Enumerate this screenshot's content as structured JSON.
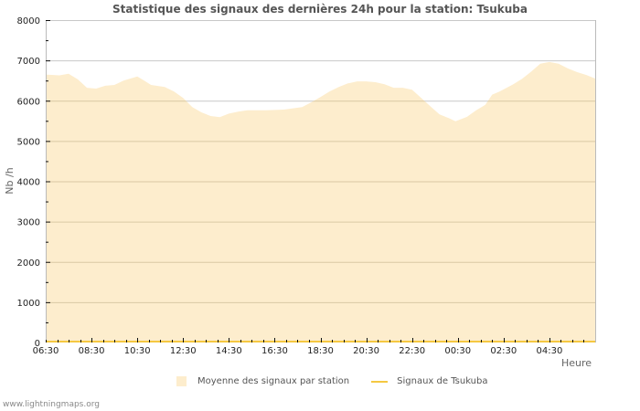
{
  "title": "Statistique des signaux des dernières 24h pour la station: Tsukuba",
  "footer": "www.lightningmaps.org",
  "colors": {
    "area_fill": "#fdedcd",
    "line": "#f5c842",
    "gridline_major": "#c8c8c8",
    "gridline_in_area": "#d9c8a4",
    "axis": "#bbbbbb",
    "text": "#222222",
    "title": "#555555"
  },
  "legend": {
    "items": [
      {
        "label": "Moyenne des signaux par station",
        "type": "area",
        "color": "#fdedcd"
      },
      {
        "label": "Signaux de Tsukuba",
        "type": "line",
        "color": "#f5c842"
      }
    ]
  },
  "chart_data": {
    "type": "area",
    "title": "Statistique des signaux des dernières 24h pour la station: Tsukuba",
    "xlabel": "Heure",
    "ylabel": "Nb /h",
    "ylim": [
      0,
      8000
    ],
    "yticks": [
      0,
      1000,
      2000,
      3000,
      4000,
      5000,
      6000,
      7000,
      8000
    ],
    "xticks": [
      "06:30",
      "08:30",
      "10:30",
      "12:30",
      "14:30",
      "16:30",
      "18:30",
      "20:30",
      "22:30",
      "00:30",
      "02:30",
      "04:30"
    ],
    "grid": true,
    "legend_position": "bottom",
    "series": [
      {
        "name": "Moyenne des signaux par station",
        "type": "area",
        "x_hours_from_start": [
          0,
          0.6,
          1.0,
          1.4,
          1.8,
          2.2,
          2.6,
          3.0,
          3.4,
          4.0,
          4.3,
          4.6,
          5.2,
          5.6,
          6.0,
          6.4,
          6.8,
          7.2,
          7.6,
          8.0,
          8.4,
          8.8,
          9.6,
          10.4,
          11.2,
          11.6,
          12.0,
          12.4,
          12.8,
          13.2,
          13.6,
          14.0,
          14.4,
          14.8,
          15.2,
          15.6,
          16.0,
          16.4,
          16.8,
          17.2,
          17.6,
          17.9,
          18.4,
          18.8,
          19.2,
          19.5,
          19.8,
          20.4,
          20.8,
          21.2,
          21.6,
          22.0,
          22.4,
          22.8,
          23.2,
          23.6,
          24.0
        ],
        "values": [
          6650,
          6630,
          6670,
          6530,
          6320,
          6300,
          6370,
          6390,
          6500,
          6600,
          6500,
          6390,
          6340,
          6230,
          6070,
          5840,
          5710,
          5620,
          5590,
          5680,
          5730,
          5760,
          5760,
          5780,
          5840,
          5960,
          6090,
          6230,
          6340,
          6430,
          6480,
          6480,
          6460,
          6410,
          6320,
          6320,
          6270,
          6070,
          5860,
          5660,
          5570,
          5490,
          5600,
          5760,
          5900,
          6150,
          6220,
          6400,
          6540,
          6720,
          6920,
          6960,
          6920,
          6800,
          6710,
          6640,
          6550
        ]
      },
      {
        "name": "Signaux de Tsukuba",
        "type": "line",
        "values_constant": 0
      }
    ]
  }
}
